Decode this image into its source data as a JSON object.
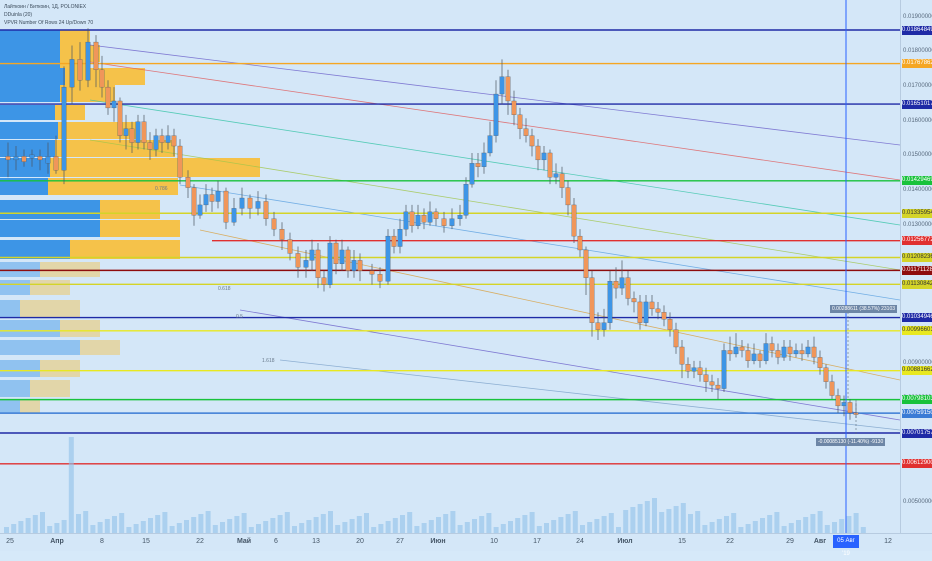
{
  "legend": {
    "symbol_line": "Лайткоин / Биткоин, 1Д, POLONIEX",
    "indicator1": "DDuinla (20)",
    "indicator2": "VPVR Number Of Rows 24 Up/Down 70"
  },
  "price_ticks": [
    "0.01900000",
    "0.01800000",
    "0.01700000",
    "0.01600000",
    "0.01500000",
    "0.01400000",
    "0.01300000",
    "0.01130000",
    "0.00900000",
    "0.00800000",
    "0.00500000"
  ],
  "price_levels": [
    {
      "value": "0.01864849",
      "price": 0.01864849,
      "color": "#1e2aa6"
    },
    {
      "value": "0.01767862",
      "price": 0.01767862,
      "color": "#f5a623"
    },
    {
      "value": "0.01651017",
      "price": 0.01651017,
      "color": "#1e2aa6"
    },
    {
      "value": "0.01429469",
      "price": 0.01429469,
      "color": "#18c23b"
    },
    {
      "value": "0.01335954",
      "price": 0.01335954,
      "color": "#d4d428"
    },
    {
      "value": "0.01256772",
      "price": 0.01256772,
      "color": "#e03030"
    },
    {
      "value": "0.01208236",
      "price": 0.01208236,
      "color": "#d4d428"
    },
    {
      "value": "0.01171128",
      "price": 0.01171128,
      "color": "#8e0c0c"
    },
    {
      "value": "0.01130842",
      "price": 0.01130842,
      "color": "#d4d428"
    },
    {
      "value": "0.01034946",
      "price": 0.01034946,
      "color": "#1e2aa6"
    },
    {
      "value": "0.00996601",
      "price": 0.00996601,
      "color": "#e8e820"
    },
    {
      "value": "0.00881662",
      "price": 0.00881662,
      "color": "#e8e820"
    },
    {
      "value": "0.00798103",
      "price": 0.00798103,
      "color": "#18c23b"
    },
    {
      "value": "0.00759150",
      "price": 0.0075915,
      "color": "#3a7bd5"
    },
    {
      "value": "0.00701757",
      "price": 0.00701757,
      "color": "#1e2aa6"
    },
    {
      "value": "0.00612900",
      "price": 0.006129,
      "color": "#e03030"
    }
  ],
  "time_labels": [
    "25",
    "Апр",
    "8",
    "15",
    "22",
    "Май",
    "6",
    "13",
    "20",
    "27",
    "Июн",
    "10",
    "17",
    "24",
    "Июл",
    "15",
    "22",
    "29",
    "Авг",
    "05 Авг '19",
    "12"
  ],
  "crosshair_date": "05 Авг '19",
  "measure_up": "0.00288611 (38.57%) 23103",
  "measure_down": "-0.00085130 (-11.40%) -9130",
  "fib_labels": [
    "0.786",
    "0.618",
    "0.5",
    "1.618"
  ],
  "colors": {
    "up": "#3d95e6",
    "down": "#f0965a",
    "background": "#d4e7f8"
  }
}
